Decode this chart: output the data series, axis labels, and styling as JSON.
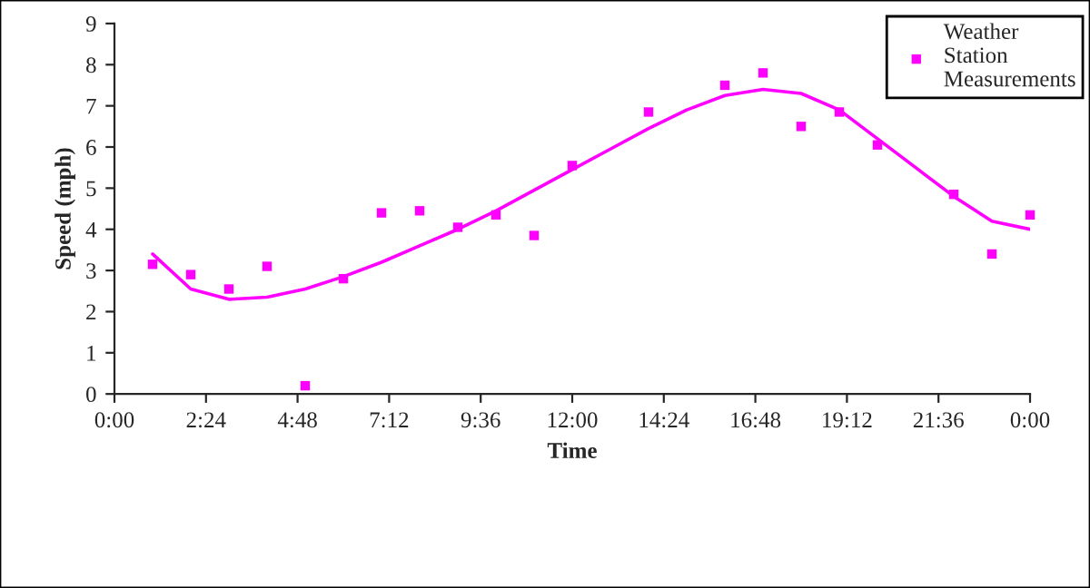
{
  "chart_data": {
    "type": "scatter",
    "xlabel": "Time",
    "ylabel": "Speed (mph)",
    "x": [
      1,
      2,
      3,
      4,
      5,
      6,
      7,
      8,
      9,
      10,
      11,
      12,
      14,
      16,
      17,
      18,
      19,
      20,
      22,
      23,
      24
    ],
    "series": [
      {
        "name": "Weather Station Measurements",
        "color": "#ff00ff",
        "marker": "square",
        "values": [
          3.15,
          2.9,
          2.55,
          3.1,
          0.2,
          2.8,
          4.4,
          4.45,
          4.05,
          4.35,
          3.85,
          5.55,
          6.85,
          7.5,
          7.8,
          6.5,
          6.85,
          6.05,
          4.85,
          3.4,
          4.35
        ]
      },
      {
        "color": "#ff00ff",
        "type": "line",
        "marker": "none",
        "x": [
          1,
          2,
          3,
          4,
          5,
          6,
          7,
          8,
          9,
          10,
          11,
          12,
          13,
          14,
          15,
          16,
          17,
          18,
          19,
          20,
          21,
          22,
          23,
          24
        ],
        "values": [
          3.4,
          2.55,
          2.3,
          2.35,
          2.55,
          2.85,
          3.2,
          3.6,
          4.0,
          4.45,
          4.95,
          5.45,
          5.95,
          6.45,
          6.9,
          7.25,
          7.4,
          7.3,
          6.9,
          6.2,
          5.5,
          4.8,
          4.2,
          4.0
        ]
      }
    ],
    "xlim": [
      0,
      24
    ],
    "ylim": [
      0,
      9
    ],
    "xticks": [
      {
        "value": 0,
        "label": "0:00"
      },
      {
        "value": 2.4,
        "label": "2:24"
      },
      {
        "value": 4.8,
        "label": "4:48"
      },
      {
        "value": 7.2,
        "label": "7:12"
      },
      {
        "value": 9.6,
        "label": "9:36"
      },
      {
        "value": 12,
        "label": "12:00"
      },
      {
        "value": 14.4,
        "label": "14:24"
      },
      {
        "value": 16.8,
        "label": "16:48"
      },
      {
        "value": 19.2,
        "label": "19:12"
      },
      {
        "value": 21.6,
        "label": "21:36"
      },
      {
        "value": 24,
        "label": "0:00"
      }
    ],
    "yticks": [
      0,
      1,
      2,
      3,
      4,
      5,
      6,
      7,
      8,
      9
    ],
    "grid": false,
    "legend": "top right"
  }
}
